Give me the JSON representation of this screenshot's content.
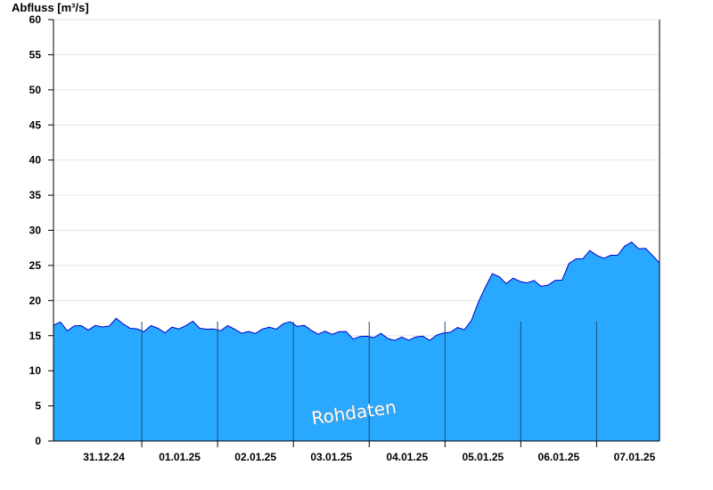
{
  "chart_data": {
    "type": "area",
    "ylabel": "Abfluss [m³/s]",
    "ylim": [
      0,
      60
    ],
    "yticks": [
      0,
      5,
      10,
      15,
      20,
      25,
      30,
      35,
      40,
      45,
      50,
      55,
      60
    ],
    "grid": true,
    "xlim_days": [
      -0.165,
      7.83
    ],
    "day_labels": [
      "31.12.24",
      "01.01.25",
      "02.01.25",
      "03.01.25",
      "04.01.25",
      "05.01.25",
      "06.01.25",
      "07.01.25"
    ],
    "series": [
      {
        "values": [
          16.5,
          16.9,
          16.2,
          16.1,
          16.1,
          16.0,
          16.3,
          16.6,
          16.5,
          16.9,
          16.8,
          16.1,
          16.0,
          16.0,
          16.0,
          15.8,
          15.7,
          16.1,
          16.3,
          16.4,
          16.5,
          16.3,
          16.0,
          16.0,
          16.0,
          15.9,
          15.8,
          15.7,
          15.5,
          15.6,
          15.8,
          15.7,
          16.3,
          16.8,
          17.0,
          16.5,
          15.9,
          15.8,
          15.6,
          15.5,
          15.4,
          15.3,
          15.2,
          15.0,
          14.9,
          14.9,
          14.8,
          14.8,
          14.8,
          14.7,
          14.6,
          14.5,
          14.5,
          14.7,
          14.9,
          15.0,
          15.3,
          15.5,
          15.7,
          16.2,
          17.5,
          19.5,
          22.0,
          23.5,
          23.3,
          23.0,
          23.0,
          22.6,
          22.5,
          22.5,
          22.5,
          22.4,
          22.5,
          23.0,
          25.0,
          26.0,
          26.5,
          26.8,
          26.3,
          26.0,
          26.2,
          27.0,
          27.8,
          27.9,
          27.5,
          27.2,
          26.6,
          25.8
        ]
      }
    ],
    "series_style": {
      "fill": "#29a8ff",
      "line": "#0000cc"
    }
  },
  "watermark": "Rohdaten"
}
